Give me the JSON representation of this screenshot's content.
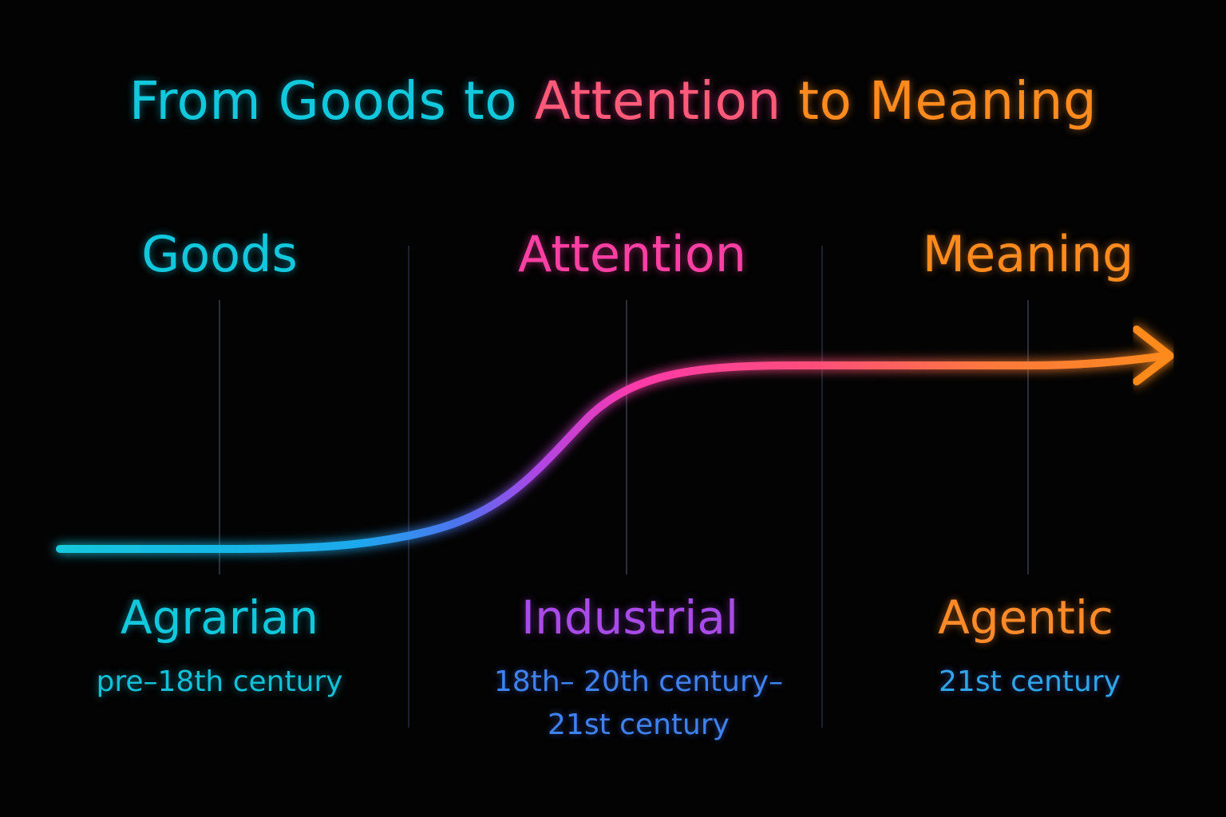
{
  "title": {
    "part1": "From Goods to ",
    "part2": "Attention",
    "part3": " to Meaning"
  },
  "phases": [
    {
      "top_label": "Goods",
      "bottom_label": "Agrarian",
      "date_line1": "pre–18th century",
      "date_line2": ""
    },
    {
      "top_label": "Attention",
      "bottom_label": "Industrial",
      "date_line1": "18th– 20th century–",
      "date_line2": "21st century"
    },
    {
      "top_label": "Meaning",
      "bottom_label": "Agentic",
      "date_line1": "21st century",
      "date_line2": ""
    }
  ],
  "colors": {
    "background": "#030303",
    "cyan": "#12c8dc",
    "blue": "#3f82f0",
    "purple": "#a94be8",
    "pink": "#ff3fa4",
    "coral": "#ff5a78",
    "orange": "#ff8a1e",
    "divider": "#1f2530"
  }
}
